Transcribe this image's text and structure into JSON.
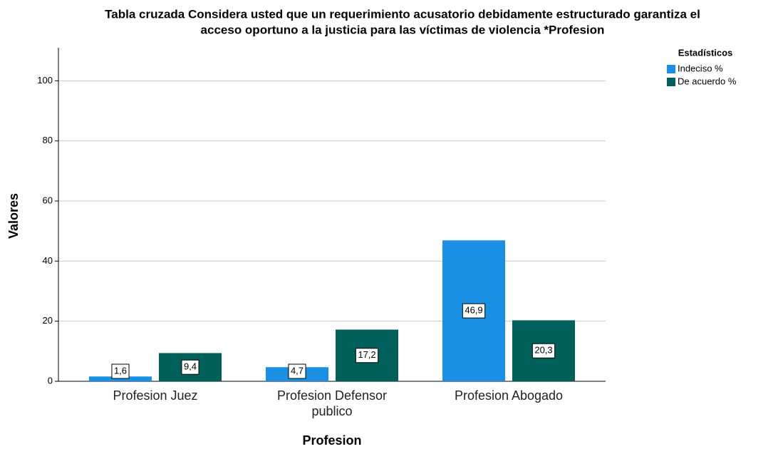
{
  "chart_data": {
    "type": "bar",
    "title": [
      "Tabla cruzada Considera usted que un requerimiento acusatorio debidamente estructurado garantiza el",
      "acceso oportuno a la justicia para las víctimas de violencia *Profesion"
    ],
    "x_label": "Profesion",
    "y_label": "Valores",
    "legend_title": "Estadísticos",
    "legend": "right",
    "categories": [
      "Profesion Juez",
      "Profesion Defensor publico",
      "Profesion Abogado"
    ],
    "series": [
      {
        "name": "Indeciso %",
        "color": "#1a8fe3",
        "values": [
          1.6,
          4.7,
          46.9
        ],
        "value_labels": [
          "1,6",
          "4,7",
          "46,9"
        ]
      },
      {
        "name": "De acuerdo %",
        "color": "#005f5a",
        "values": [
          9.4,
          17.2,
          20.3
        ],
        "value_labels": [
          "9,4",
          "17,2",
          "20,3"
        ]
      }
    ],
    "ylim": [
      0,
      111
    ],
    "yticks": [
      0,
      20,
      40,
      60,
      80,
      100
    ],
    "grid": true
  }
}
